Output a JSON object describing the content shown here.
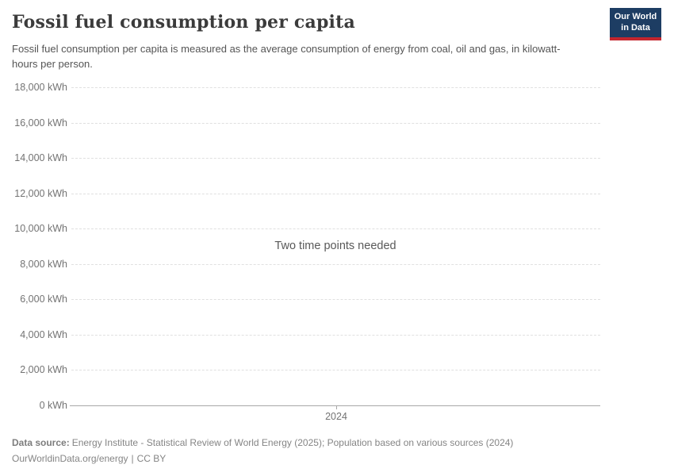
{
  "header": {
    "title": "Fossil fuel consumption per capita",
    "subtitle": "Fossil fuel consumption per capita is measured as the average consumption of energy from coal, oil and gas, in kilowatt-hours per person.",
    "logo": {
      "line1": "Our World",
      "line2": "in Data",
      "bg_color": "#1d3d63",
      "accent_color": "#c4262e"
    }
  },
  "chart_data": {
    "type": "line",
    "title": "Fossil fuel consumption per capita",
    "unit": "kWh",
    "series": [],
    "empty_message": "Two time points needed",
    "ylim": [
      0,
      18000
    ],
    "ytick_interval": 2000,
    "yticks": [
      18000,
      16000,
      14000,
      12000,
      10000,
      8000,
      6000,
      4000,
      2000,
      0
    ],
    "ytick_labels": [
      "18,000 kWh",
      "16,000 kWh",
      "14,000 kWh",
      "12,000 kWh",
      "10,000 kWh",
      "8,000 kWh",
      "6,000 kWh",
      "4,000 kWh",
      "2,000 kWh",
      "0 kWh"
    ],
    "xtick_labels": [
      "2024"
    ],
    "grid": "horizontal-dashed",
    "legend": "none",
    "grid_color": "#e0e0e0",
    "axis_color": "#a8a8a8"
  },
  "footer": {
    "data_source_label": "Data source:",
    "data_source_text": "Energy Institute - Statistical Review of World Energy (2025); Population based on various sources (2024)",
    "link_text": "OurWorldinData.org/energy",
    "separator": "|",
    "license": "CC BY"
  }
}
